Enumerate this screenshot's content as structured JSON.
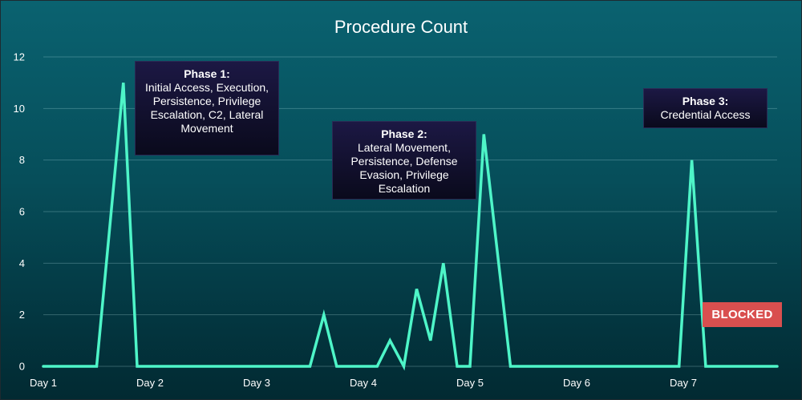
{
  "chart_data": {
    "type": "line",
    "title": "Procedure Count",
    "xlabel": "",
    "ylabel": "",
    "ylim": [
      0,
      12
    ],
    "yticks": [
      0,
      2,
      4,
      6,
      8,
      10,
      12
    ],
    "xlim": [
      0,
      7
    ],
    "xticks": [
      {
        "label": "Day 1",
        "x": 0
      },
      {
        "label": "Day 2",
        "x": 1
      },
      {
        "label": "Day 3",
        "x": 2
      },
      {
        "label": "Day 4",
        "x": 3
      },
      {
        "label": "Day 5",
        "x": 4
      },
      {
        "label": "Day 6",
        "x": 5
      },
      {
        "label": "Day 7",
        "x": 6
      }
    ],
    "grid": true,
    "series": [
      {
        "color": "#4ef5c8",
        "points": [
          [
            0.0,
            0
          ],
          [
            0.5,
            0
          ],
          [
            0.75,
            11
          ],
          [
            0.88,
            0
          ],
          [
            2.5,
            0
          ],
          [
            2.63,
            2
          ],
          [
            2.75,
            0
          ],
          [
            3.13,
            0
          ],
          [
            3.25,
            1
          ],
          [
            3.38,
            0
          ],
          [
            3.5,
            3
          ],
          [
            3.63,
            1
          ],
          [
            3.75,
            4
          ],
          [
            3.88,
            0
          ],
          [
            4.0,
            0
          ],
          [
            4.13,
            9
          ],
          [
            4.38,
            0
          ],
          [
            5.96,
            0
          ],
          [
            6.08,
            8
          ],
          [
            6.21,
            0
          ],
          [
            6.88,
            0
          ]
        ]
      }
    ],
    "annotations": [
      {
        "title": "Phase 1:",
        "text": "Initial Access, Execution, Persistence, Privilege Escalation, C2, Lateral Movement"
      },
      {
        "title": "Phase 2:",
        "text": "Lateral Movement, Persistence, Defense Evasion, Privilege Escalation"
      },
      {
        "title": "Phase 3:",
        "text": "Credential Access"
      }
    ],
    "badge": {
      "text": "BLOCKED",
      "color": "#d94f4f"
    }
  }
}
